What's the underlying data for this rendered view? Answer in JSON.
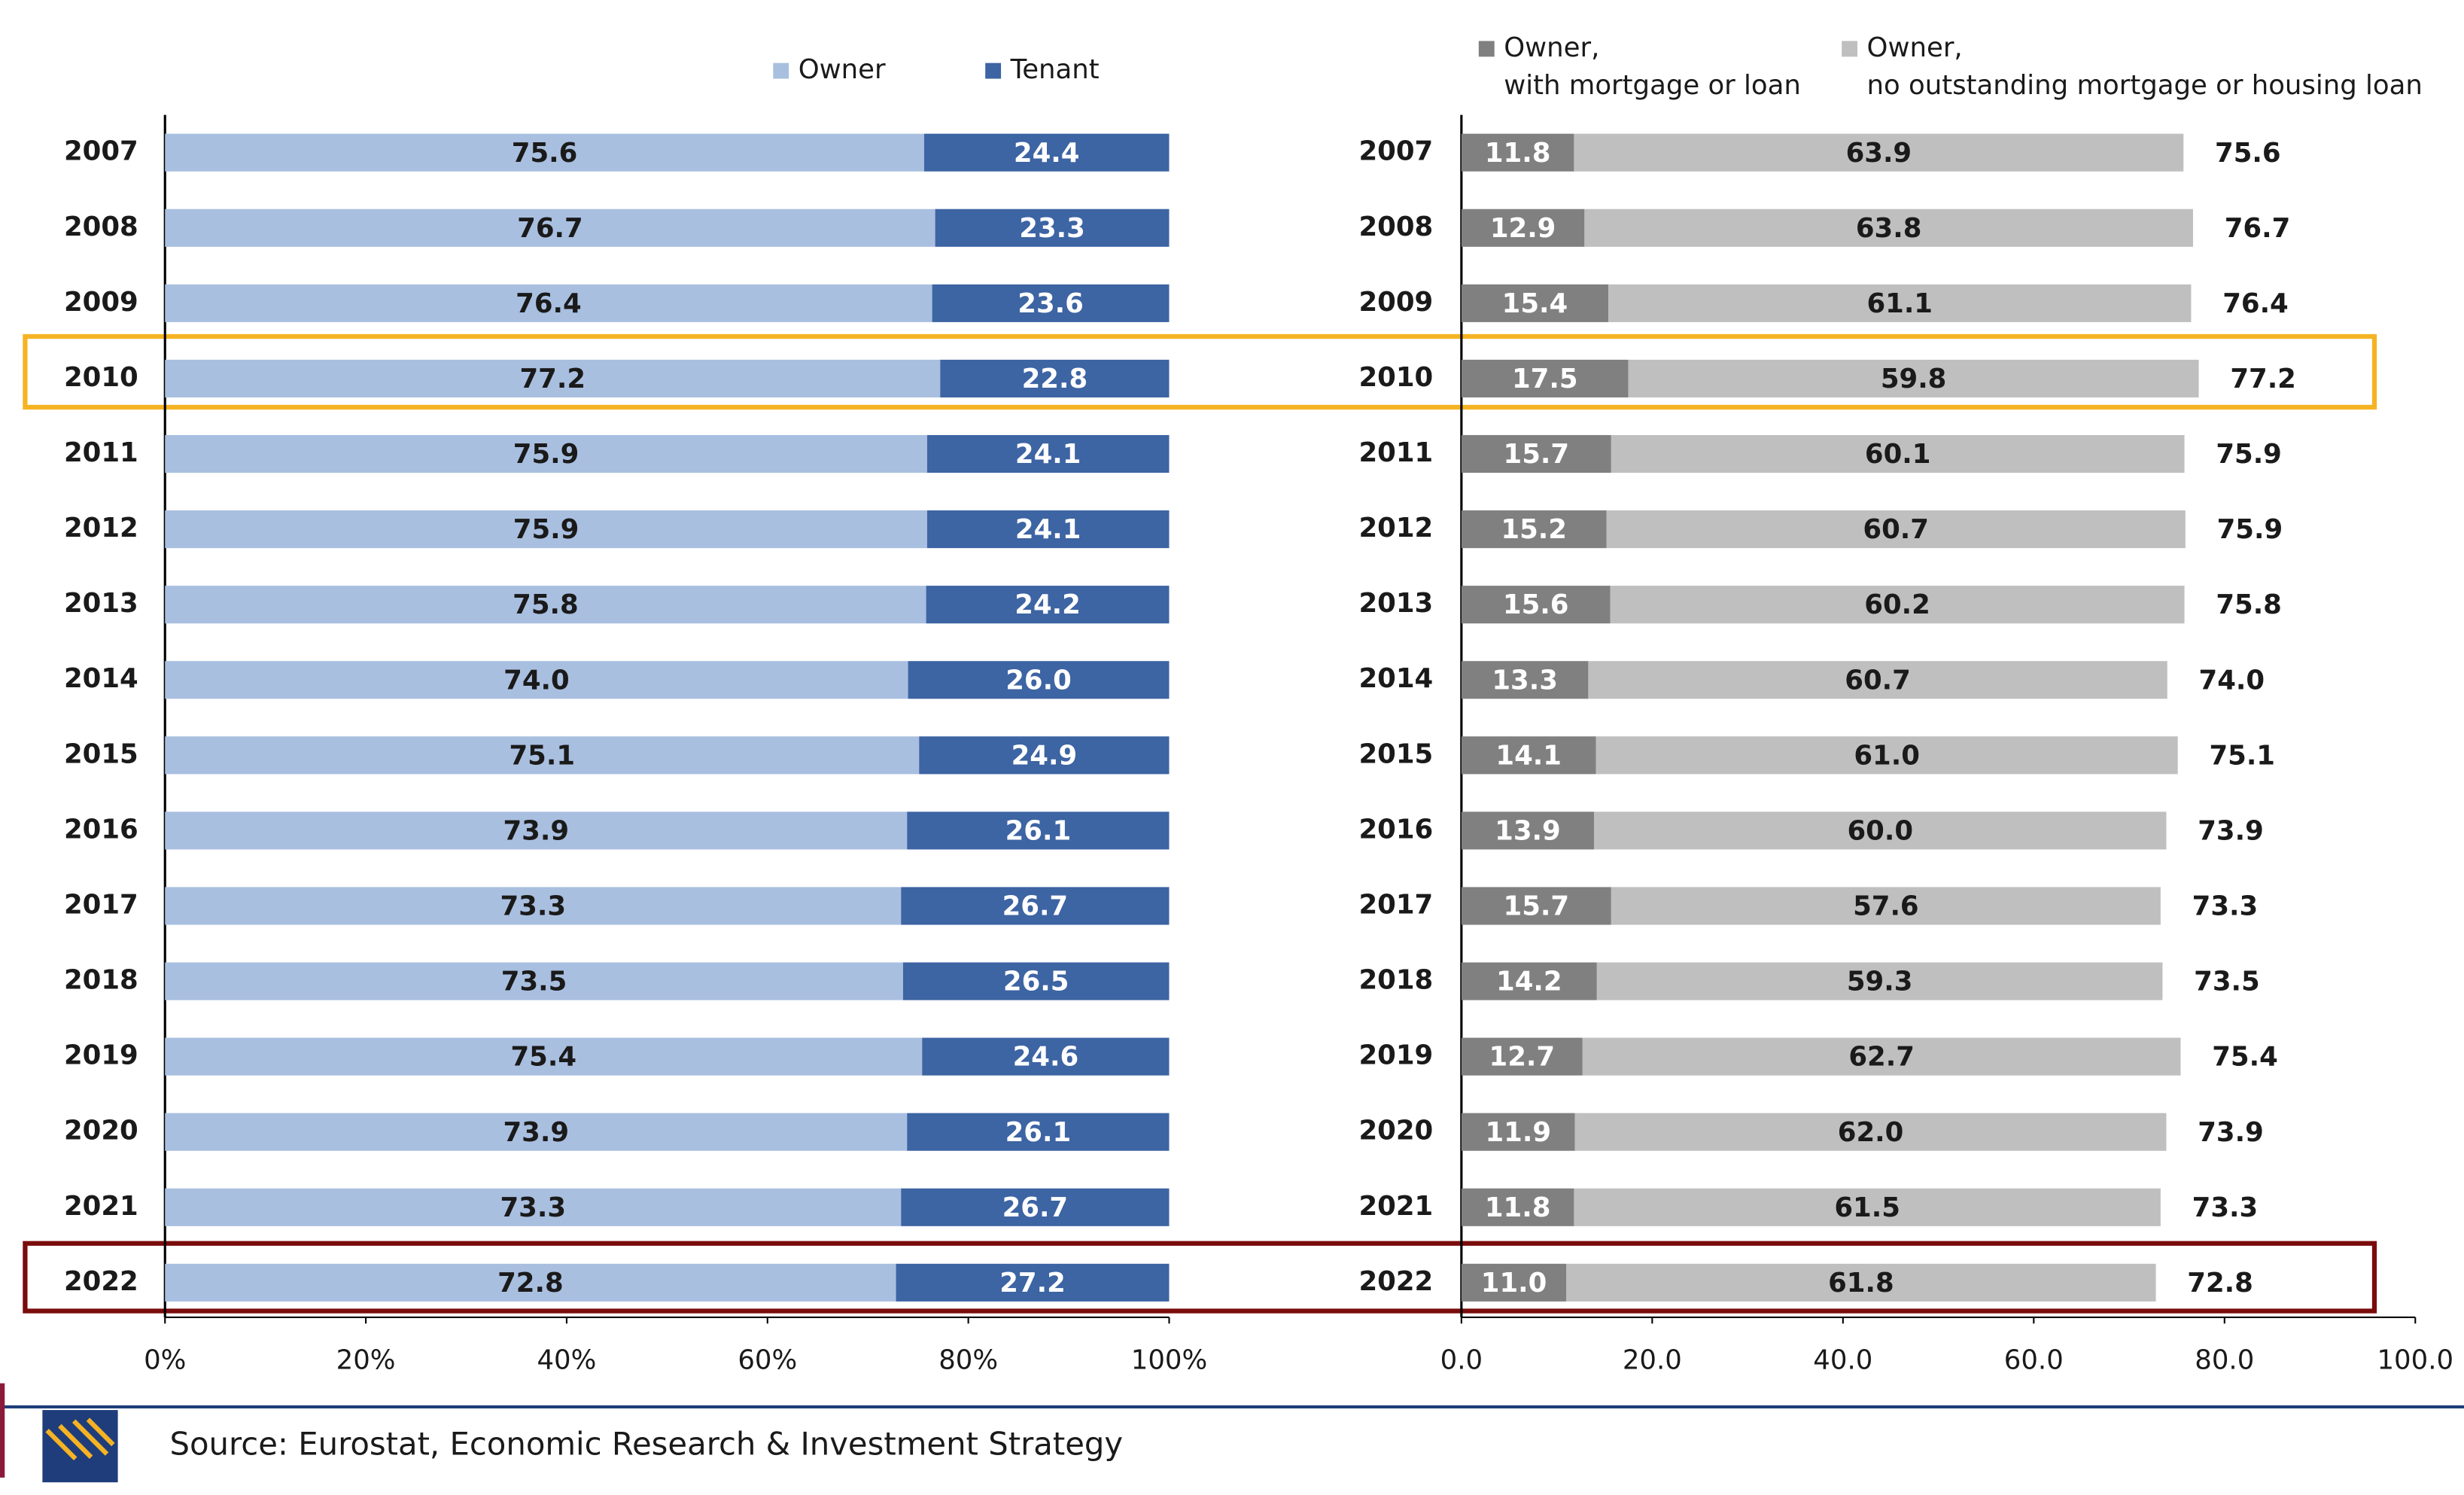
{
  "chart_data": [
    {
      "type": "bar",
      "stacked": true,
      "orientation": "horizontal",
      "categories": [
        "2007",
        "2008",
        "2009",
        "2010",
        "2011",
        "2012",
        "2013",
        "2014",
        "2015",
        "2016",
        "2017",
        "2018",
        "2019",
        "2020",
        "2021",
        "2022"
      ],
      "series": [
        {
          "name": "Owner",
          "color": "#a9bfe0",
          "label_color": "#1a1a1a",
          "values": [
            75.6,
            76.7,
            76.4,
            77.2,
            75.9,
            75.9,
            75.8,
            74.0,
            75.1,
            73.9,
            73.3,
            73.5,
            75.4,
            73.9,
            73.3,
            72.8
          ],
          "value_labels": [
            "75.6",
            "76.7",
            "76.4",
            "77.2",
            "75.9",
            "75.9",
            "75.8",
            "74.0",
            "75.1",
            "73.9",
            "73.3",
            "73.5",
            "75.4",
            "73.9",
            "73.3",
            "72.8"
          ]
        },
        {
          "name": "Tenant",
          "color": "#3d64a3",
          "label_color": "#ffffff",
          "values": [
            24.4,
            23.3,
            23.6,
            22.8,
            24.1,
            24.1,
            24.2,
            26.0,
            24.9,
            26.1,
            26.7,
            26.5,
            24.6,
            26.1,
            26.7,
            27.2
          ],
          "value_labels": [
            "24.4",
            "23.3",
            "23.6",
            "22.8",
            "24.1",
            "24.1",
            "24.2",
            "26.0",
            "24.9",
            "26.1",
            "26.7",
            "26.5",
            "24.6",
            "26.1",
            "26.7",
            "27.2"
          ]
        }
      ],
      "xlim": [
        0,
        100
      ],
      "xticks": [
        {
          "value": 0,
          "label": "0%"
        },
        {
          "value": 20,
          "label": "20%"
        },
        {
          "value": 40,
          "label": "40%"
        },
        {
          "value": 60,
          "label": "60%"
        },
        {
          "value": 80,
          "label": "80%"
        },
        {
          "value": 100,
          "label": "100%"
        }
      ],
      "grid": false,
      "legend": "top"
    },
    {
      "type": "bar",
      "stacked": true,
      "orientation": "horizontal",
      "categories": [
        "2007",
        "2008",
        "2009",
        "2010",
        "2011",
        "2012",
        "2013",
        "2014",
        "2015",
        "2016",
        "2017",
        "2018",
        "2019",
        "2020",
        "2021",
        "2022"
      ],
      "series": [
        {
          "name": "Owner,\nwith mortgage or loan",
          "color": "#808080",
          "label_color": "#ffffff",
          "values": [
            11.8,
            12.9,
            15.4,
            17.5,
            15.7,
            15.2,
            15.6,
            13.3,
            14.1,
            13.9,
            15.7,
            14.2,
            12.7,
            11.9,
            11.8,
            11.0
          ],
          "value_labels": [
            "11.8",
            "12.9",
            "15.4",
            "17.5",
            "15.7",
            "15.2",
            "15.6",
            "13.3",
            "14.1",
            "13.9",
            "15.7",
            "14.2",
            "12.7",
            "11.9",
            "11.8",
            "11.0"
          ]
        },
        {
          "name": "Owner,\nno outstanding mortgage or housing loan",
          "color": "#bfbfbf",
          "label_color": "#1a1a1a",
          "values": [
            63.9,
            63.8,
            61.1,
            59.8,
            60.1,
            60.7,
            60.2,
            60.7,
            61.0,
            60.0,
            57.6,
            59.3,
            62.7,
            62.0,
            61.5,
            61.8
          ],
          "value_labels": [
            "63.9",
            "63.8",
            "61.1",
            "59.8",
            "60.1",
            "60.7",
            "60.2",
            "60.7",
            "61.0",
            "60.0",
            "57.6",
            "59.3",
            "62.7",
            "62.0",
            "61.5",
            "61.8"
          ]
        }
      ],
      "totals": {
        "values": [
          75.6,
          76.7,
          76.4,
          77.2,
          75.9,
          75.9,
          75.8,
          74.0,
          75.1,
          73.9,
          73.3,
          73.5,
          75.4,
          73.9,
          73.3,
          72.8
        ],
        "value_labels": [
          "75.6",
          "76.7",
          "76.4",
          "77.2",
          "75.9",
          "75.9",
          "75.8",
          "74.0",
          "75.1",
          "73.9",
          "73.3",
          "73.5",
          "75.4",
          "73.9",
          "73.3",
          "72.8"
        ]
      },
      "xlim": [
        0,
        100
      ],
      "xticks": [
        {
          "value": 0,
          "label": "0.0"
        },
        {
          "value": 20,
          "label": "20.0"
        },
        {
          "value": 40,
          "label": "40.0"
        },
        {
          "value": 60,
          "label": "60.0"
        },
        {
          "value": 80,
          "label": "80.0"
        },
        {
          "value": 100,
          "label": "100.0"
        }
      ],
      "grid": false,
      "legend": "top"
    }
  ],
  "source": "Source: Eurostat, Economic Research & Investment Strategy"
}
